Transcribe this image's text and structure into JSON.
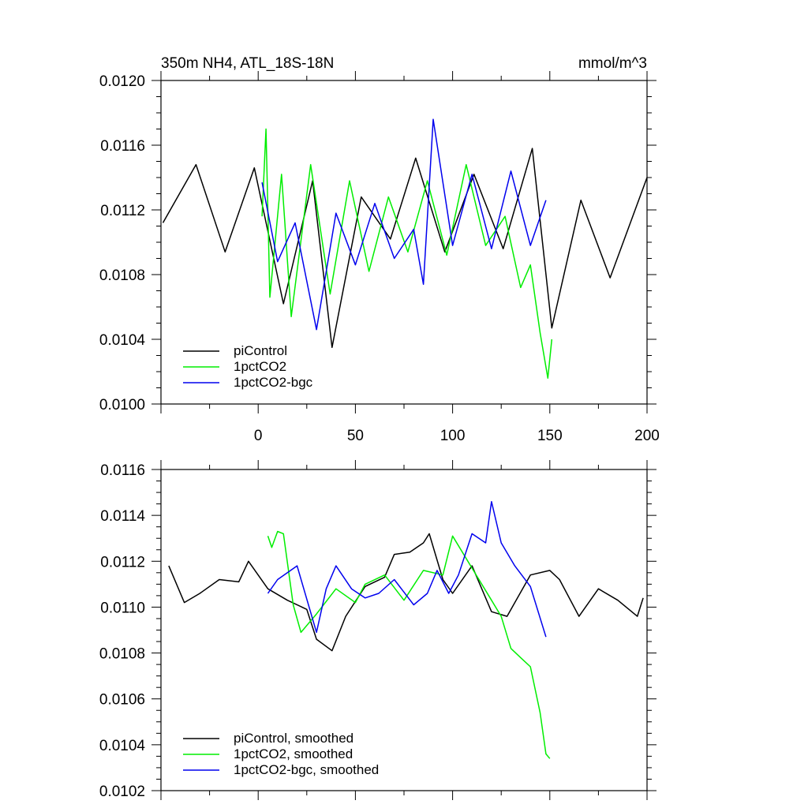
{
  "chart_data": [
    {
      "type": "line",
      "title": "350m NH4, ATL_18S-18N",
      "units": "mmol/m^3",
      "xlabel": "",
      "ylabel": "",
      "xlim": [
        -50,
        200
      ],
      "ylim": [
        0.01,
        0.012
      ],
      "x_ticks": [
        0,
        50,
        100,
        150,
        200
      ],
      "x_tick_labels": [
        "0",
        "50",
        "100",
        "150",
        "200"
      ],
      "y_ticks": [
        0.01,
        0.0104,
        0.0108,
        0.0112,
        0.0116,
        0.012
      ],
      "y_tick_labels": [
        "0.0100",
        "0.0104",
        "0.0108",
        "0.0112",
        "0.0116",
        "0.0120"
      ],
      "grid": false,
      "legend_position": "bottom-left",
      "series": [
        {
          "name": "piControl",
          "color": "#000000",
          "x": [
            -49,
            -32,
            -17,
            -2,
            13,
            28,
            38,
            53,
            68,
            81,
            96,
            111,
            126,
            141,
            151,
            166,
            181,
            200
          ],
          "values": [
            0.01112,
            0.01148,
            0.01094,
            0.01146,
            0.01062,
            0.01138,
            0.01035,
            0.01128,
            0.01102,
            0.01152,
            0.01094,
            0.01142,
            0.01096,
            0.01158,
            0.01047,
            0.01126,
            0.01078,
            0.0114
          ]
        },
        {
          "name": "1pctCO2",
          "color": "#00ee00",
          "x": [
            2,
            4,
            6,
            12,
            17,
            27,
            37,
            47,
            57,
            67,
            77,
            87,
            97,
            107,
            117,
            127,
            135,
            140,
            145,
            149,
            151
          ],
          "values": [
            0.01116,
            0.0117,
            0.01066,
            0.01142,
            0.01054,
            0.01148,
            0.01068,
            0.01138,
            0.01082,
            0.01128,
            0.01094,
            0.01138,
            0.01092,
            0.01148,
            0.01098,
            0.01116,
            0.01072,
            0.01086,
            0.01044,
            0.01016,
            0.0104
          ]
        },
        {
          "name": "1pctCO2-bgc",
          "color": "#0000ee",
          "x": [
            2,
            10,
            19,
            30,
            40,
            50,
            60,
            70,
            80,
            85,
            90,
            100,
            110,
            120,
            130,
            140,
            148
          ],
          "values": [
            0.01137,
            0.01088,
            0.01112,
            0.01046,
            0.01118,
            0.01086,
            0.01124,
            0.0109,
            0.01108,
            0.01074,
            0.01176,
            0.01098,
            0.01142,
            0.01096,
            0.01144,
            0.01098,
            0.01126
          ]
        }
      ],
      "legend": [
        "piControl",
        "1pctCO2",
        "1pctCO2-bgc"
      ]
    },
    {
      "type": "line",
      "title": "",
      "xlabel": "",
      "ylabel": "",
      "xlim": [
        -50,
        200
      ],
      "ylim": [
        0.0102,
        0.0116
      ],
      "x_ticks": [
        0,
        50,
        100,
        150,
        200
      ],
      "y_ticks": [
        0.0102,
        0.0104,
        0.0106,
        0.0108,
        0.011,
        0.0112,
        0.0114,
        0.0116
      ],
      "y_tick_labels": [
        "0.0102",
        "0.0104",
        "0.0106",
        "0.0108",
        "0.0110",
        "0.0112",
        "0.0114",
        "0.0116"
      ],
      "grid": false,
      "legend_position": "bottom-left",
      "series": [
        {
          "name": "piControl, smoothed",
          "color": "#000000",
          "x": [
            -46,
            -38,
            -30,
            -20,
            -10,
            -5,
            5,
            15,
            25,
            30,
            38,
            45,
            55,
            65,
            70,
            78,
            85,
            88,
            95,
            100,
            110,
            120,
            128,
            140,
            150,
            155,
            165,
            175,
            185,
            195,
            198
          ],
          "values": [
            0.01118,
            0.01102,
            0.01106,
            0.01112,
            0.01111,
            0.0112,
            0.01108,
            0.01103,
            0.01099,
            0.01086,
            0.01081,
            0.01096,
            0.01109,
            0.01113,
            0.01123,
            0.01124,
            0.01128,
            0.01132,
            0.01112,
            0.01106,
            0.01118,
            0.01098,
            0.01096,
            0.01114,
            0.01116,
            0.01112,
            0.01096,
            0.01108,
            0.01103,
            0.01096,
            0.01104
          ]
        },
        {
          "name": "1pctCO2, smoothed",
          "color": "#00ee00",
          "x": [
            5,
            7,
            10,
            13,
            18,
            22,
            30,
            40,
            50,
            55,
            65,
            75,
            85,
            95,
            100,
            110,
            120,
            125,
            130,
            135,
            140,
            145,
            148,
            150
          ],
          "values": [
            0.01131,
            0.01126,
            0.01133,
            0.01132,
            0.01101,
            0.01089,
            0.01097,
            0.01108,
            0.01102,
            0.0111,
            0.01114,
            0.01103,
            0.01116,
            0.01114,
            0.01131,
            0.01117,
            0.01103,
            0.01096,
            0.01082,
            0.01078,
            0.01074,
            0.01054,
            0.01036,
            0.01034
          ]
        },
        {
          "name": "1pctCO2-bgc, smoothed",
          "color": "#0000ee",
          "x": [
            5,
            10,
            20,
            30,
            35,
            40,
            48,
            55,
            62,
            70,
            80,
            87,
            92,
            98,
            103,
            110,
            117,
            120,
            125,
            132,
            140,
            148
          ],
          "values": [
            0.01106,
            0.01112,
            0.01118,
            0.01089,
            0.01108,
            0.01118,
            0.01108,
            0.01104,
            0.01106,
            0.01112,
            0.01101,
            0.01106,
            0.01116,
            0.01106,
            0.01114,
            0.01132,
            0.01128,
            0.01146,
            0.01128,
            0.01118,
            0.01109,
            0.01087
          ]
        }
      ],
      "legend": [
        "piControl, smoothed",
        "1pctCO2, smoothed",
        "1pctCO2-bgc, smoothed"
      ]
    }
  ]
}
